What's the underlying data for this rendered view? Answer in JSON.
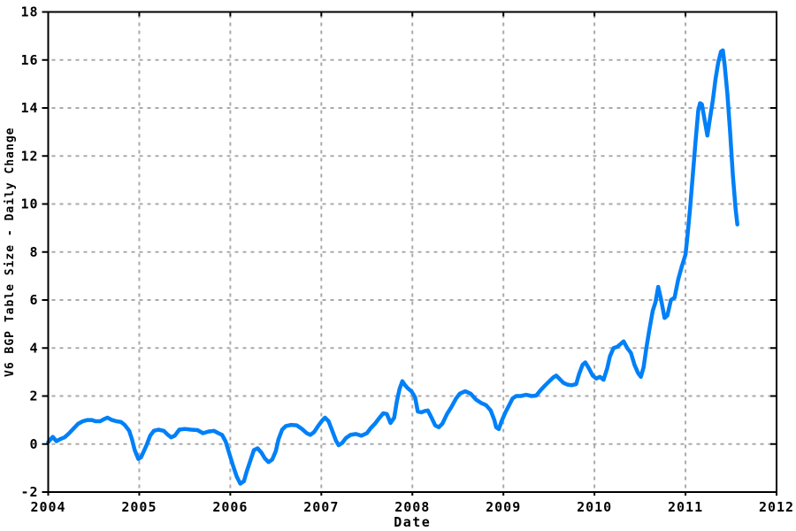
{
  "chart_data": {
    "type": "line",
    "title": "",
    "xlabel": "Date",
    "ylabel": "V6 BGP Table Size - Daily Change",
    "xlim": [
      2004,
      2012
    ],
    "ylim": [
      -2,
      18
    ],
    "xticks": [
      2004,
      2005,
      2006,
      2007,
      2008,
      2009,
      2010,
      2011,
      2012
    ],
    "yticks": [
      -2,
      0,
      2,
      4,
      6,
      8,
      10,
      12,
      14,
      16,
      18
    ],
    "grid": "dashed-gray-both-axes",
    "legend_position": "none",
    "colors": {
      "line": "#0080f8",
      "grid": "#aaaaaa",
      "axis": "#000000",
      "text": "#000000",
      "background": "#ffffff"
    },
    "series": [
      {
        "name": "V6 BGP Table Size - Daily Change",
        "points": [
          [
            2004.0,
            0.08
          ],
          [
            2004.05,
            0.3
          ],
          [
            2004.09,
            0.12
          ],
          [
            2004.14,
            0.22
          ],
          [
            2004.18,
            0.28
          ],
          [
            2004.23,
            0.45
          ],
          [
            2004.28,
            0.65
          ],
          [
            2004.33,
            0.85
          ],
          [
            2004.38,
            0.95
          ],
          [
            2004.43,
            1.0
          ],
          [
            2004.48,
            1.0
          ],
          [
            2004.52,
            0.95
          ],
          [
            2004.57,
            0.95
          ],
          [
            2004.62,
            1.05
          ],
          [
            2004.65,
            1.1
          ],
          [
            2004.7,
            1.0
          ],
          [
            2004.75,
            0.95
          ],
          [
            2004.8,
            0.92
          ],
          [
            2004.84,
            0.8
          ],
          [
            2004.89,
            0.55
          ],
          [
            2004.92,
            0.2
          ],
          [
            2004.95,
            -0.25
          ],
          [
            2004.99,
            -0.62
          ],
          [
            2005.02,
            -0.55
          ],
          [
            2005.05,
            -0.3
          ],
          [
            2005.08,
            -0.05
          ],
          [
            2005.12,
            0.35
          ],
          [
            2005.16,
            0.55
          ],
          [
            2005.21,
            0.6
          ],
          [
            2005.27,
            0.55
          ],
          [
            2005.31,
            0.4
          ],
          [
            2005.35,
            0.28
          ],
          [
            2005.39,
            0.35
          ],
          [
            2005.44,
            0.6
          ],
          [
            2005.5,
            0.63
          ],
          [
            2005.57,
            0.6
          ],
          [
            2005.64,
            0.58
          ],
          [
            2005.7,
            0.45
          ],
          [
            2005.76,
            0.52
          ],
          [
            2005.82,
            0.55
          ],
          [
            2005.87,
            0.45
          ],
          [
            2005.91,
            0.38
          ],
          [
            2005.95,
            0.1
          ],
          [
            2005.99,
            -0.4
          ],
          [
            2006.03,
            -0.9
          ],
          [
            2006.07,
            -1.35
          ],
          [
            2006.11,
            -1.65
          ],
          [
            2006.15,
            -1.55
          ],
          [
            2006.18,
            -1.15
          ],
          [
            2006.22,
            -0.7
          ],
          [
            2006.26,
            -0.25
          ],
          [
            2006.3,
            -0.18
          ],
          [
            2006.34,
            -0.35
          ],
          [
            2006.38,
            -0.6
          ],
          [
            2006.42,
            -0.75
          ],
          [
            2006.46,
            -0.65
          ],
          [
            2006.5,
            -0.3
          ],
          [
            2006.53,
            0.2
          ],
          [
            2006.57,
            0.6
          ],
          [
            2006.61,
            0.75
          ],
          [
            2006.67,
            0.8
          ],
          [
            2006.73,
            0.78
          ],
          [
            2006.79,
            0.62
          ],
          [
            2006.84,
            0.45
          ],
          [
            2006.88,
            0.38
          ],
          [
            2006.92,
            0.5
          ],
          [
            2006.97,
            0.78
          ],
          [
            2007.01,
            0.98
          ],
          [
            2007.04,
            1.1
          ],
          [
            2007.08,
            0.95
          ],
          [
            2007.12,
            0.55
          ],
          [
            2007.16,
            0.15
          ],
          [
            2007.19,
            -0.05
          ],
          [
            2007.23,
            0.05
          ],
          [
            2007.27,
            0.25
          ],
          [
            2007.32,
            0.38
          ],
          [
            2007.38,
            0.42
          ],
          [
            2007.44,
            0.35
          ],
          [
            2007.5,
            0.45
          ],
          [
            2007.54,
            0.65
          ],
          [
            2007.59,
            0.85
          ],
          [
            2007.64,
            1.1
          ],
          [
            2007.68,
            1.28
          ],
          [
            2007.72,
            1.25
          ],
          [
            2007.76,
            0.88
          ],
          [
            2007.8,
            1.1
          ],
          [
            2007.83,
            1.8
          ],
          [
            2007.86,
            2.3
          ],
          [
            2007.89,
            2.62
          ],
          [
            2007.92,
            2.45
          ],
          [
            2007.95,
            2.32
          ],
          [
            2007.99,
            2.2
          ],
          [
            2008.03,
            1.95
          ],
          [
            2008.06,
            1.35
          ],
          [
            2008.1,
            1.32
          ],
          [
            2008.14,
            1.38
          ],
          [
            2008.17,
            1.4
          ],
          [
            2008.21,
            1.1
          ],
          [
            2008.25,
            0.78
          ],
          [
            2008.29,
            0.7
          ],
          [
            2008.33,
            0.85
          ],
          [
            2008.38,
            1.25
          ],
          [
            2008.43,
            1.55
          ],
          [
            2008.48,
            1.9
          ],
          [
            2008.52,
            2.1
          ],
          [
            2008.58,
            2.2
          ],
          [
            2008.64,
            2.1
          ],
          [
            2008.7,
            1.85
          ],
          [
            2008.76,
            1.7
          ],
          [
            2008.81,
            1.62
          ],
          [
            2008.86,
            1.4
          ],
          [
            2008.9,
            1.0
          ],
          [
            2008.92,
            0.7
          ],
          [
            2008.95,
            0.62
          ],
          [
            2008.98,
            0.95
          ],
          [
            2009.02,
            1.3
          ],
          [
            2009.06,
            1.6
          ],
          [
            2009.1,
            1.9
          ],
          [
            2009.14,
            2.0
          ],
          [
            2009.19,
            2.0
          ],
          [
            2009.25,
            2.05
          ],
          [
            2009.31,
            2.0
          ],
          [
            2009.36,
            2.02
          ],
          [
            2009.41,
            2.25
          ],
          [
            2009.46,
            2.45
          ],
          [
            2009.5,
            2.6
          ],
          [
            2009.55,
            2.78
          ],
          [
            2009.58,
            2.85
          ],
          [
            2009.62,
            2.7
          ],
          [
            2009.66,
            2.55
          ],
          [
            2009.7,
            2.48
          ],
          [
            2009.75,
            2.45
          ],
          [
            2009.8,
            2.5
          ],
          [
            2009.83,
            2.9
          ],
          [
            2009.87,
            3.3
          ],
          [
            2009.9,
            3.4
          ],
          [
            2009.94,
            3.15
          ],
          [
            2009.98,
            2.85
          ],
          [
            2010.02,
            2.73
          ],
          [
            2010.06,
            2.8
          ],
          [
            2010.1,
            2.68
          ],
          [
            2010.14,
            3.15
          ],
          [
            2010.17,
            3.65
          ],
          [
            2010.21,
            4.0
          ],
          [
            2010.25,
            4.05
          ],
          [
            2010.29,
            4.18
          ],
          [
            2010.32,
            4.28
          ],
          [
            2010.36,
            4.0
          ],
          [
            2010.4,
            3.8
          ],
          [
            2010.44,
            3.3
          ],
          [
            2010.48,
            2.95
          ],
          [
            2010.51,
            2.8
          ],
          [
            2010.54,
            3.2
          ],
          [
            2010.57,
            4.0
          ],
          [
            2010.6,
            4.7
          ],
          [
            2010.64,
            5.55
          ],
          [
            2010.67,
            5.9
          ],
          [
            2010.7,
            6.55
          ],
          [
            2010.73,
            6.05
          ],
          [
            2010.77,
            5.25
          ],
          [
            2010.8,
            5.35
          ],
          [
            2010.84,
            6.0
          ],
          [
            2010.88,
            6.1
          ],
          [
            2010.92,
            6.85
          ],
          [
            2010.96,
            7.4
          ],
          [
            2011.0,
            7.9
          ],
          [
            2011.02,
            8.6
          ],
          [
            2011.05,
            9.8
          ],
          [
            2011.08,
            11.2
          ],
          [
            2011.11,
            12.6
          ],
          [
            2011.14,
            13.9
          ],
          [
            2011.16,
            14.2
          ],
          [
            2011.18,
            14.15
          ],
          [
            2011.21,
            13.5
          ],
          [
            2011.24,
            12.85
          ],
          [
            2011.27,
            13.6
          ],
          [
            2011.3,
            14.3
          ],
          [
            2011.33,
            15.2
          ],
          [
            2011.36,
            15.9
          ],
          [
            2011.39,
            16.35
          ],
          [
            2011.41,
            16.4
          ],
          [
            2011.43,
            15.8
          ],
          [
            2011.46,
            14.6
          ],
          [
            2011.49,
            13.0
          ],
          [
            2011.52,
            11.2
          ],
          [
            2011.55,
            9.8
          ],
          [
            2011.57,
            9.15
          ]
        ]
      }
    ]
  }
}
